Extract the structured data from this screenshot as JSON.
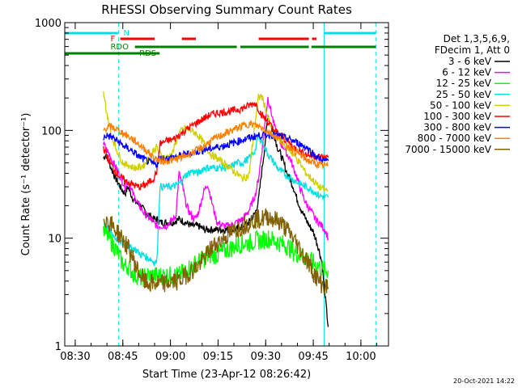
{
  "chart_data": {
    "type": "line",
    "title": "RHESSI Observing Summary Count Rates",
    "xlabel": "Start Time (23-Apr-12 08:26:42)",
    "ylabel": "Count Rate (s⁻¹ detector⁻¹)",
    "y_scale": "log",
    "ylim": [
      1,
      1000
    ],
    "xlim_minutes": [
      0,
      102
    ],
    "x_ticks": [
      {
        "t": 3.3,
        "label": "08:30"
      },
      {
        "t": 18.3,
        "label": "08:45"
      },
      {
        "t": 33.3,
        "label": "09:00"
      },
      {
        "t": 48.3,
        "label": "09:15"
      },
      {
        "t": 63.3,
        "label": "09:30"
      },
      {
        "t": 78.3,
        "label": "09:45"
      },
      {
        "t": 93.3,
        "label": "10:00"
      }
    ],
    "y_ticks": [
      {
        "v": 1,
        "label": "1"
      },
      {
        "v": 10,
        "label": "10"
      },
      {
        "v": 100,
        "label": "100"
      },
      {
        "v": 1000,
        "label": "1000"
      }
    ],
    "legend_header": [
      "Det 1,3,5,6,9,",
      "FDecim 1, Att 0"
    ],
    "timestamp": "20-Oct-2021 14:22",
    "vertical_lines": [
      {
        "t": 0.0,
        "color": "#00e0e0",
        "style": "solid"
      },
      {
        "t": 17.0,
        "color": "#00e0e0",
        "style": "dashed"
      },
      {
        "t": 81.7,
        "color": "#00e0e0",
        "style": "solid"
      },
      {
        "t": 98.0,
        "color": "#00e0e0",
        "style": "dashed"
      }
    ],
    "flag_labels": [
      {
        "text": "N",
        "t": 18.5,
        "color": "#00e0e0"
      },
      {
        "text": "F",
        "t": 14.4,
        "color": "#ff0000"
      },
      {
        "text": "RDO",
        "t": 14.4,
        "color": "#008000"
      },
      {
        "text": "RDS",
        "t": 23.5,
        "color": "#008000"
      }
    ],
    "flag_bars": [
      {
        "name": "night",
        "color": "#00e0e0",
        "segments": [
          [
            0,
            16.8
          ],
          [
            81.8,
            98
          ]
        ]
      },
      {
        "name": "flare",
        "color": "#ff0000",
        "segments": [
          [
            17.5,
            28.3
          ],
          [
            36.9,
            41.3
          ],
          [
            61.1,
            76.9
          ],
          [
            77.9,
            79.3
          ]
        ]
      },
      {
        "name": "rdo",
        "color": "#008000",
        "segments": [
          [
            22.1,
            29.9
          ],
          [
            29.9,
            54.2
          ],
          [
            55.3,
            76.9
          ],
          [
            77.7,
            98
          ]
        ]
      },
      {
        "name": "rds",
        "color": "#008000",
        "segments": [
          [
            0,
            29.9
          ]
        ]
      }
    ],
    "series": [
      {
        "name": "3 - 6 keV",
        "color": "#000000",
        "t": [
          12.2,
          13,
          14,
          15,
          16,
          17,
          18,
          19,
          20,
          21,
          22,
          23,
          24,
          25,
          26,
          27,
          28,
          29,
          30,
          32,
          34,
          36,
          38,
          40,
          42,
          44,
          46,
          48,
          50,
          52,
          54,
          56,
          58,
          60,
          61,
          62,
          63,
          64,
          65,
          66,
          67,
          68,
          69,
          70,
          71,
          72,
          73,
          74,
          75,
          76,
          77,
          78,
          79,
          80,
          81,
          82,
          83
        ],
        "v": [
          55,
          60,
          50,
          42,
          36,
          32,
          28,
          26,
          30,
          25,
          22,
          21,
          20,
          18,
          17,
          16,
          15,
          15,
          14,
          14,
          14,
          15,
          14,
          13,
          13,
          12,
          12,
          12,
          12,
          12,
          12,
          13,
          14,
          17,
          22,
          40,
          70,
          140,
          110,
          90,
          70,
          60,
          50,
          40,
          35,
          30,
          24,
          20,
          17,
          15,
          13,
          12,
          10,
          8,
          6,
          3,
          1.5
        ]
      },
      {
        "name": "6 - 12 keV",
        "color": "#ff00ff",
        "t": [
          12.2,
          13,
          14,
          15,
          16,
          17,
          18,
          19,
          20,
          21,
          22,
          23,
          24,
          25,
          26,
          27,
          28,
          29,
          30,
          31,
          32,
          33,
          34,
          35,
          36,
          37,
          38,
          39,
          40,
          41,
          42,
          43,
          44,
          45,
          46,
          47,
          48,
          50,
          52,
          54,
          56,
          58,
          60,
          61,
          62,
          63,
          64,
          65,
          66,
          67,
          68,
          69,
          70,
          71,
          72,
          73,
          74,
          75,
          76,
          77,
          78,
          79,
          80,
          81,
          82,
          83
        ],
        "v": [
          75,
          68,
          60,
          52,
          46,
          40,
          35,
          30,
          34,
          28,
          24,
          21,
          19,
          17,
          16,
          15,
          14,
          13,
          13,
          13,
          13,
          14,
          15,
          16,
          40,
          32,
          22,
          18,
          16,
          15,
          17,
          22,
          28,
          32,
          24,
          18,
          14,
          13,
          13,
          14,
          15,
          18,
          25,
          35,
          60,
          110,
          200,
          150,
          110,
          90,
          75,
          70,
          60,
          55,
          45,
          38,
          30,
          25,
          21,
          19,
          17,
          15,
          14,
          13,
          12,
          10
        ]
      },
      {
        "name": "12 - 25 keV",
        "color": "#00ff00",
        "t": [
          12.2,
          13,
          14,
          15,
          16,
          17,
          18,
          19,
          20,
          21,
          22,
          23,
          24,
          25,
          26,
          27,
          28,
          29,
          30,
          32,
          34,
          36,
          38,
          40,
          42,
          44,
          46,
          48,
          50,
          52,
          54,
          56,
          58,
          60,
          62,
          64,
          66,
          68,
          70,
          72,
          74,
          76,
          78,
          80,
          82,
          83
        ],
        "v": [
          12,
          11,
          10,
          9,
          8,
          7,
          6,
          5.5,
          5.5,
          5,
          4.5,
          4.5,
          4.3,
          4.3,
          4.5,
          4.5,
          4.5,
          4.5,
          4.5,
          4.5,
          4.5,
          4.5,
          5,
          5.5,
          6,
          6.5,
          7,
          7,
          7.5,
          8,
          8.5,
          9,
          9,
          9.5,
          9.5,
          10,
          9.5,
          9,
          8.5,
          7.5,
          7,
          6.5,
          6,
          5.5,
          5,
          5
        ]
      },
      {
        "name": "25 - 50 keV",
        "color": "#00e0e0",
        "t": [
          12.2,
          13,
          14,
          15,
          16,
          17,
          18,
          19,
          20,
          21,
          22,
          23,
          24,
          25,
          26,
          27,
          28,
          29,
          30,
          32,
          34,
          36,
          38,
          40,
          42,
          44,
          46,
          48,
          50,
          52,
          54,
          56,
          58,
          60,
          61,
          62,
          63,
          64,
          65,
          66,
          67,
          68,
          70,
          72,
          74,
          76,
          78,
          80,
          82,
          83
        ],
        "v": [
          15,
          13,
          12,
          11,
          10,
          9.5,
          9,
          8.5,
          8.5,
          8,
          8,
          7.5,
          7,
          7,
          6.5,
          6.5,
          6,
          6,
          30,
          30,
          30,
          32,
          38,
          42,
          40,
          45,
          45,
          45,
          45,
          45,
          50,
          50,
          55,
          65,
          90,
          80,
          70,
          60,
          55,
          50,
          45,
          42,
          38,
          35,
          32,
          30,
          28,
          25,
          24,
          24
        ]
      },
      {
        "name": "50 - 100 keV",
        "color": "#d0d000",
        "t": [
          12.2,
          13,
          14,
          15,
          16,
          17,
          18,
          19,
          20,
          21,
          22,
          23,
          24,
          25,
          26,
          27,
          28,
          29,
          30,
          32,
          34,
          36,
          38,
          40,
          42,
          44,
          46,
          48,
          50,
          52,
          54,
          56,
          58,
          60,
          61,
          62,
          63,
          64,
          65,
          66,
          68,
          70,
          72,
          74,
          76,
          78,
          80,
          82,
          83
        ],
        "v": [
          220,
          160,
          110,
          85,
          70,
          60,
          52,
          48,
          48,
          46,
          45,
          45,
          46,
          48,
          52,
          58,
          66,
          70,
          60,
          55,
          62,
          95,
          105,
          100,
          90,
          75,
          60,
          55,
          50,
          45,
          40,
          36,
          38,
          120,
          200,
          210,
          170,
          130,
          110,
          95,
          80,
          70,
          60,
          50,
          40,
          35,
          30,
          28,
          28
        ]
      },
      {
        "name": "100 - 300 keV",
        "color": "#ff0000",
        "t": [
          12.2,
          13,
          14,
          15,
          16,
          17,
          18,
          19,
          20,
          21,
          22,
          23,
          24,
          25,
          26,
          27,
          28,
          29,
          30,
          32,
          34,
          36,
          38,
          40,
          42,
          44,
          46,
          48,
          50,
          52,
          54,
          56,
          58,
          60,
          62,
          64,
          66,
          68,
          70,
          72,
          74,
          76,
          78,
          80,
          82,
          83
        ],
        "v": [
          70,
          60,
          52,
          46,
          42,
          38,
          36,
          34,
          33,
          32,
          31,
          30,
          30,
          31,
          32,
          34,
          36,
          42,
          75,
          80,
          82,
          90,
          100,
          110,
          120,
          130,
          140,
          145,
          148,
          150,
          155,
          160,
          170,
          180,
          140,
          120,
          100,
          90,
          80,
          70,
          65,
          60,
          58,
          57,
          56,
          56
        ]
      },
      {
        "name": "300 - 800 keV",
        "color": "#0000ff",
        "t": [
          12.2,
          13,
          14,
          15,
          16,
          17,
          18,
          19,
          20,
          21,
          22,
          23,
          24,
          25,
          26,
          27,
          28,
          29,
          30,
          32,
          34,
          36,
          38,
          40,
          42,
          44,
          46,
          48,
          50,
          52,
          54,
          56,
          58,
          60,
          62,
          64,
          66,
          68,
          70,
          72,
          74,
          76,
          78,
          80,
          82,
          83
        ],
        "v": [
          85,
          90,
          88,
          86,
          82,
          78,
          74,
          70,
          68,
          65,
          62,
          58,
          56,
          54,
          52,
          50,
          49,
          48,
          55,
          55,
          56,
          58,
          60,
          62,
          64,
          66,
          68,
          70,
          72,
          75,
          78,
          82,
          85,
          88,
          90,
          92,
          90,
          88,
          84,
          80,
          75,
          70,
          62,
          55,
          52,
          52
        ]
      },
      {
        "name": "800 - 7000 keV",
        "color": "#ff8000",
        "t": [
          12.2,
          13,
          14,
          15,
          16,
          17,
          18,
          19,
          20,
          21,
          22,
          23,
          24,
          25,
          26,
          27,
          28,
          29,
          30,
          32,
          34,
          36,
          38,
          40,
          42,
          44,
          46,
          48,
          50,
          52,
          54,
          56,
          58,
          60,
          62,
          64,
          66,
          68,
          70,
          72,
          74,
          76,
          78,
          80,
          82,
          83
        ],
        "v": [
          100,
          105,
          108,
          106,
          104,
          100,
          96,
          92,
          88,
          84,
          80,
          76,
          72,
          68,
          64,
          60,
          56,
          54,
          52,
          52,
          53,
          55,
          58,
          62,
          66,
          72,
          80,
          86,
          92,
          98,
          104,
          110,
          115,
          112,
          106,
          98,
          90,
          82,
          74,
          66,
          60,
          54,
          50,
          48,
          47,
          47
        ]
      },
      {
        "name": "7000 - 15000 keV",
        "color": "#806000",
        "t": [
          12.2,
          13,
          14,
          15,
          16,
          17,
          18,
          19,
          20,
          21,
          22,
          23,
          24,
          25,
          26,
          27,
          28,
          29,
          30,
          32,
          34,
          36,
          38,
          40,
          42,
          44,
          46,
          48,
          50,
          52,
          54,
          56,
          58,
          60,
          62,
          64,
          66,
          68,
          70,
          72,
          74,
          76,
          78,
          80,
          82,
          83
        ],
        "v": [
          16,
          15,
          14,
          13,
          12,
          11,
          10,
          9,
          8,
          7,
          6,
          5,
          4.5,
          4,
          3.8,
          3.8,
          3.8,
          3.8,
          3.8,
          3.8,
          4,
          4,
          4.5,
          5,
          5.5,
          6.5,
          8,
          9,
          10,
          11,
          12,
          13,
          14,
          15,
          15,
          16,
          15,
          14,
          12,
          10,
          8,
          6.5,
          5,
          4,
          3.5,
          3.5
        ]
      }
    ]
  }
}
